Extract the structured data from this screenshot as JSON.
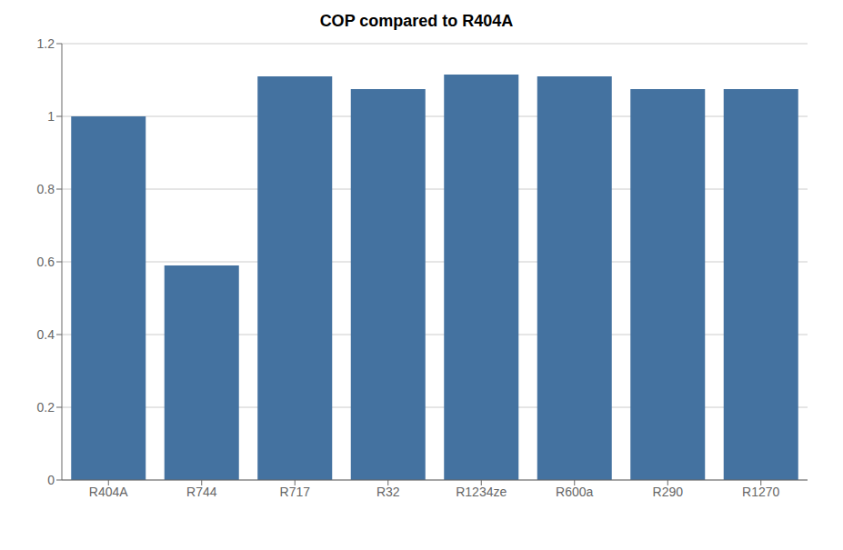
{
  "chart_data": {
    "type": "bar",
    "title": "COP compared to R404A",
    "categories": [
      "R404A",
      "R744",
      "R717",
      "R32",
      "R1234ze",
      "R600a",
      "R290",
      "R1270"
    ],
    "values": [
      1.0,
      0.59,
      1.11,
      1.075,
      1.115,
      1.11,
      1.075,
      1.075
    ],
    "color": "#4472a0",
    "ylim": [
      0,
      1.2
    ],
    "yticks": [
      0,
      0.2,
      0.4,
      0.6,
      0.8,
      1,
      1.2
    ],
    "grid": true
  }
}
